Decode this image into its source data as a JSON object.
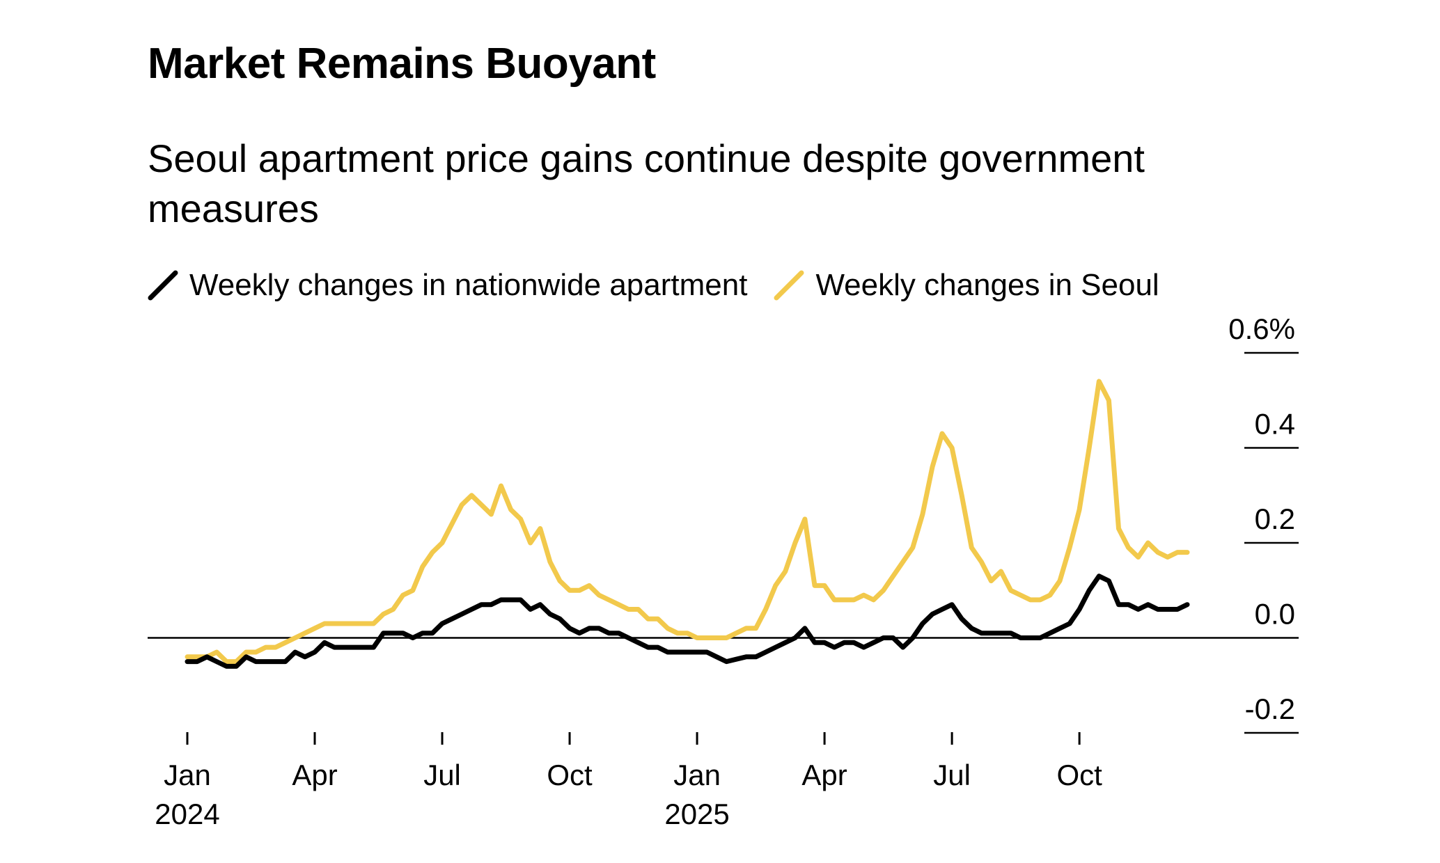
{
  "title": "Market Remains Buoyant",
  "subtitle": "Seoul apartment price gains continue despite government measures",
  "legend": [
    {
      "label": "Weekly changes in nationwide apartment",
      "color": "#000000",
      "icon": "diagonal-line-icon"
    },
    {
      "label": "Weekly changes in Seoul",
      "color": "#f2c94c",
      "icon": "diagonal-line-icon"
    }
  ],
  "chart_data": {
    "type": "line",
    "title": "Market Remains Buoyant",
    "subtitle": "Seoul apartment price gains continue despite government measures",
    "xlabel": "",
    "ylabel": "",
    "ylim": [
      -0.2,
      0.6
    ],
    "grid": false,
    "y_axis_position": "right",
    "y_ticks": [
      {
        "value": 0.6,
        "label": "0.6%"
      },
      {
        "value": 0.4,
        "label": "0.4"
      },
      {
        "value": 0.2,
        "label": "0.2"
      },
      {
        "value": 0.0,
        "label": "0.0"
      },
      {
        "value": -0.2,
        "label": "-0.2"
      }
    ],
    "x_ticks": [
      {
        "week": 0,
        "label": "Jan",
        "year": "2024"
      },
      {
        "week": 13,
        "label": "Apr",
        "year": ""
      },
      {
        "week": 26,
        "label": "Jul",
        "year": ""
      },
      {
        "week": 39,
        "label": "Oct",
        "year": ""
      },
      {
        "week": 52,
        "label": "Jan",
        "year": "2025"
      },
      {
        "week": 65,
        "label": "Apr",
        "year": ""
      },
      {
        "week": 78,
        "label": "Jul",
        "year": ""
      },
      {
        "week": 91,
        "label": "Oct",
        "year": ""
      }
    ],
    "x_range_weeks": [
      0,
      103
    ],
    "series": [
      {
        "name": "Weekly changes in nationwide apartment",
        "color": "#000000",
        "points": [
          [
            0,
            -0.05
          ],
          [
            1,
            -0.05
          ],
          [
            2,
            -0.04
          ],
          [
            3,
            -0.05
          ],
          [
            4,
            -0.06
          ],
          [
            5,
            -0.06
          ],
          [
            6,
            -0.04
          ],
          [
            7,
            -0.05
          ],
          [
            8,
            -0.05
          ],
          [
            9,
            -0.05
          ],
          [
            10,
            -0.05
          ],
          [
            11,
            -0.03
          ],
          [
            12,
            -0.04
          ],
          [
            13,
            -0.03
          ],
          [
            14,
            -0.01
          ],
          [
            15,
            -0.02
          ],
          [
            16,
            -0.02
          ],
          [
            17,
            -0.02
          ],
          [
            18,
            -0.02
          ],
          [
            19,
            -0.02
          ],
          [
            20,
            0.01
          ],
          [
            21,
            0.01
          ],
          [
            22,
            0.01
          ],
          [
            23,
            0.0
          ],
          [
            24,
            0.01
          ],
          [
            25,
            0.01
          ],
          [
            26,
            0.03
          ],
          [
            27,
            0.04
          ],
          [
            28,
            0.05
          ],
          [
            29,
            0.06
          ],
          [
            30,
            0.07
          ],
          [
            31,
            0.07
          ],
          [
            32,
            0.08
          ],
          [
            33,
            0.08
          ],
          [
            34,
            0.08
          ],
          [
            35,
            0.06
          ],
          [
            36,
            0.07
          ],
          [
            37,
            0.05
          ],
          [
            38,
            0.04
          ],
          [
            39,
            0.02
          ],
          [
            40,
            0.01
          ],
          [
            41,
            0.02
          ],
          [
            42,
            0.02
          ],
          [
            43,
            0.01
          ],
          [
            44,
            0.01
          ],
          [
            45,
            0.0
          ],
          [
            46,
            -0.01
          ],
          [
            47,
            -0.02
          ],
          [
            48,
            -0.02
          ],
          [
            49,
            -0.03
          ],
          [
            50,
            -0.03
          ],
          [
            51,
            -0.03
          ],
          [
            52,
            -0.03
          ],
          [
            53,
            -0.03
          ],
          [
            54,
            -0.04
          ],
          [
            55,
            -0.05
          ],
          [
            56,
            -0.045
          ],
          [
            57,
            -0.04
          ],
          [
            58,
            -0.04
          ],
          [
            59,
            -0.03
          ],
          [
            60,
            -0.02
          ],
          [
            61,
            -0.01
          ],
          [
            62,
            0.0
          ],
          [
            63,
            0.02
          ],
          [
            64,
            -0.01
          ],
          [
            65,
            -0.01
          ],
          [
            66,
            -0.02
          ],
          [
            67,
            -0.01
          ],
          [
            68,
            -0.01
          ],
          [
            69,
            -0.02
          ],
          [
            70,
            -0.01
          ],
          [
            71,
            0.0
          ],
          [
            72,
            0.0
          ],
          [
            73,
            -0.02
          ],
          [
            74,
            0.0
          ],
          [
            75,
            0.03
          ],
          [
            76,
            0.05
          ],
          [
            77,
            0.06
          ],
          [
            78,
            0.07
          ],
          [
            79,
            0.04
          ],
          [
            80,
            0.02
          ],
          [
            81,
            0.01
          ],
          [
            82,
            0.01
          ],
          [
            83,
            0.01
          ],
          [
            84,
            0.01
          ],
          [
            85,
            0.0
          ],
          [
            86,
            0.0
          ],
          [
            87,
            0.0
          ],
          [
            88,
            0.01
          ],
          [
            89,
            0.02
          ],
          [
            90,
            0.03
          ],
          [
            91,
            0.06
          ],
          [
            92,
            0.1
          ],
          [
            93,
            0.13
          ],
          [
            94,
            0.12
          ],
          [
            95,
            0.07
          ],
          [
            96,
            0.07
          ],
          [
            97,
            0.06
          ],
          [
            98,
            0.07
          ],
          [
            99,
            0.06
          ],
          [
            100,
            0.06
          ],
          [
            101,
            0.06
          ],
          [
            102,
            0.07
          ]
        ]
      },
      {
        "name": "Weekly changes in Seoul",
        "color": "#f2c94c",
        "points": [
          [
            0,
            -0.04
          ],
          [
            1,
            -0.04
          ],
          [
            2,
            -0.04
          ],
          [
            3,
            -0.03
          ],
          [
            4,
            -0.05
          ],
          [
            5,
            -0.05
          ],
          [
            6,
            -0.03
          ],
          [
            7,
            -0.03
          ],
          [
            8,
            -0.02
          ],
          [
            9,
            -0.02
          ],
          [
            10,
            -0.01
          ],
          [
            11,
            0.0
          ],
          [
            12,
            0.01
          ],
          [
            13,
            0.02
          ],
          [
            14,
            0.03
          ],
          [
            15,
            0.03
          ],
          [
            16,
            0.03
          ],
          [
            17,
            0.03
          ],
          [
            18,
            0.03
          ],
          [
            19,
            0.03
          ],
          [
            20,
            0.05
          ],
          [
            21,
            0.06
          ],
          [
            22,
            0.09
          ],
          [
            23,
            0.1
          ],
          [
            24,
            0.15
          ],
          [
            25,
            0.18
          ],
          [
            26,
            0.2
          ],
          [
            27,
            0.24
          ],
          [
            28,
            0.28
          ],
          [
            29,
            0.3
          ],
          [
            30,
            0.28
          ],
          [
            31,
            0.26
          ],
          [
            32,
            0.32
          ],
          [
            33,
            0.27
          ],
          [
            34,
            0.25
          ],
          [
            35,
            0.2
          ],
          [
            36,
            0.23
          ],
          [
            37,
            0.16
          ],
          [
            38,
            0.12
          ],
          [
            39,
            0.1
          ],
          [
            40,
            0.1
          ],
          [
            41,
            0.11
          ],
          [
            42,
            0.09
          ],
          [
            43,
            0.08
          ],
          [
            44,
            0.07
          ],
          [
            45,
            0.06
          ],
          [
            46,
            0.06
          ],
          [
            47,
            0.04
          ],
          [
            48,
            0.04
          ],
          [
            49,
            0.02
          ],
          [
            50,
            0.01
          ],
          [
            51,
            0.01
          ],
          [
            52,
            0.0
          ],
          [
            53,
            0.0
          ],
          [
            54,
            0.0
          ],
          [
            55,
            0.0
          ],
          [
            56,
            0.01
          ],
          [
            57,
            0.02
          ],
          [
            58,
            0.02
          ],
          [
            59,
            0.06
          ],
          [
            60,
            0.11
          ],
          [
            61,
            0.14
          ],
          [
            62,
            0.2
          ],
          [
            63,
            0.25
          ],
          [
            64,
            0.11
          ],
          [
            65,
            0.11
          ],
          [
            66,
            0.08
          ],
          [
            67,
            0.08
          ],
          [
            68,
            0.08
          ],
          [
            69,
            0.09
          ],
          [
            70,
            0.08
          ],
          [
            71,
            0.1
          ],
          [
            72,
            0.13
          ],
          [
            73,
            0.16
          ],
          [
            74,
            0.19
          ],
          [
            75,
            0.26
          ],
          [
            76,
            0.36
          ],
          [
            77,
            0.43
          ],
          [
            78,
            0.4
          ],
          [
            79,
            0.3
          ],
          [
            80,
            0.19
          ],
          [
            81,
            0.16
          ],
          [
            82,
            0.12
          ],
          [
            83,
            0.14
          ],
          [
            84,
            0.1
          ],
          [
            85,
            0.09
          ],
          [
            86,
            0.08
          ],
          [
            87,
            0.08
          ],
          [
            88,
            0.09
          ],
          [
            89,
            0.12
          ],
          [
            90,
            0.19
          ],
          [
            91,
            0.27
          ],
          [
            92,
            0.4
          ],
          [
            93,
            0.54
          ],
          [
            94,
            0.5
          ],
          [
            95,
            0.23
          ],
          [
            96,
            0.19
          ],
          [
            97,
            0.17
          ],
          [
            98,
            0.2
          ],
          [
            99,
            0.18
          ],
          [
            100,
            0.17
          ],
          [
            101,
            0.18
          ],
          [
            102,
            0.18
          ]
        ]
      }
    ]
  }
}
